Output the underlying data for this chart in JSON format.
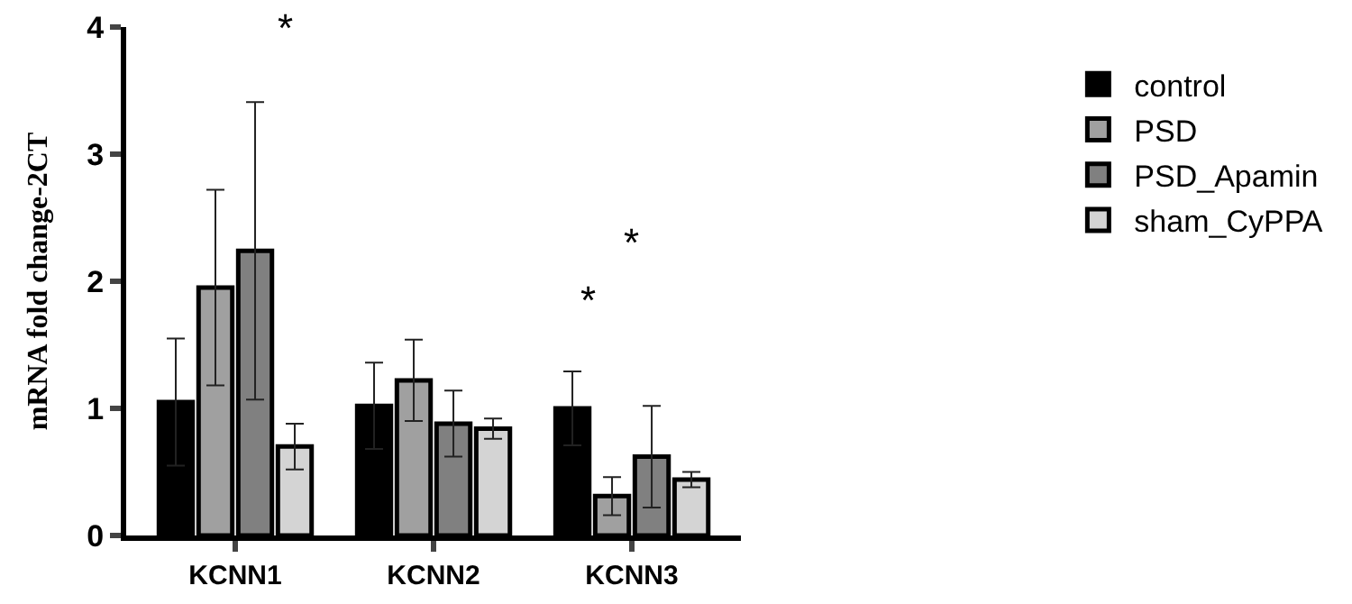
{
  "chart_data": {
    "type": "bar",
    "ylabel": "mRNA fold change-2CT",
    "categories": [
      "KCNN1",
      "KCNN2",
      "KCNN3"
    ],
    "series": [
      {
        "name": "control",
        "color": "#000000",
        "values": [
          1.05,
          1.02,
          1.0
        ],
        "errors": [
          0.5,
          0.34,
          0.29
        ]
      },
      {
        "name": "PSD",
        "color": "#a0a0a0",
        "values": [
          1.95,
          1.22,
          0.31
        ],
        "errors": [
          0.77,
          0.32,
          0.15
        ]
      },
      {
        "name": "PSD_Apamin",
        "color": "#808080",
        "values": [
          2.24,
          0.88,
          0.62
        ],
        "errors": [
          1.17,
          0.26,
          0.4
        ]
      },
      {
        "name": "sham_CyPPA",
        "color": "#d4d4d4",
        "values": [
          0.7,
          0.84,
          0.44
        ],
        "errors": [
          0.18,
          0.08,
          0.06
        ]
      }
    ],
    "annotations": [
      "*",
      "*",
      "*"
    ],
    "ylim": [
      0,
      4
    ],
    "yticks": [
      0,
      1,
      2,
      3,
      4
    ],
    "grid": false,
    "legend": "top right"
  }
}
